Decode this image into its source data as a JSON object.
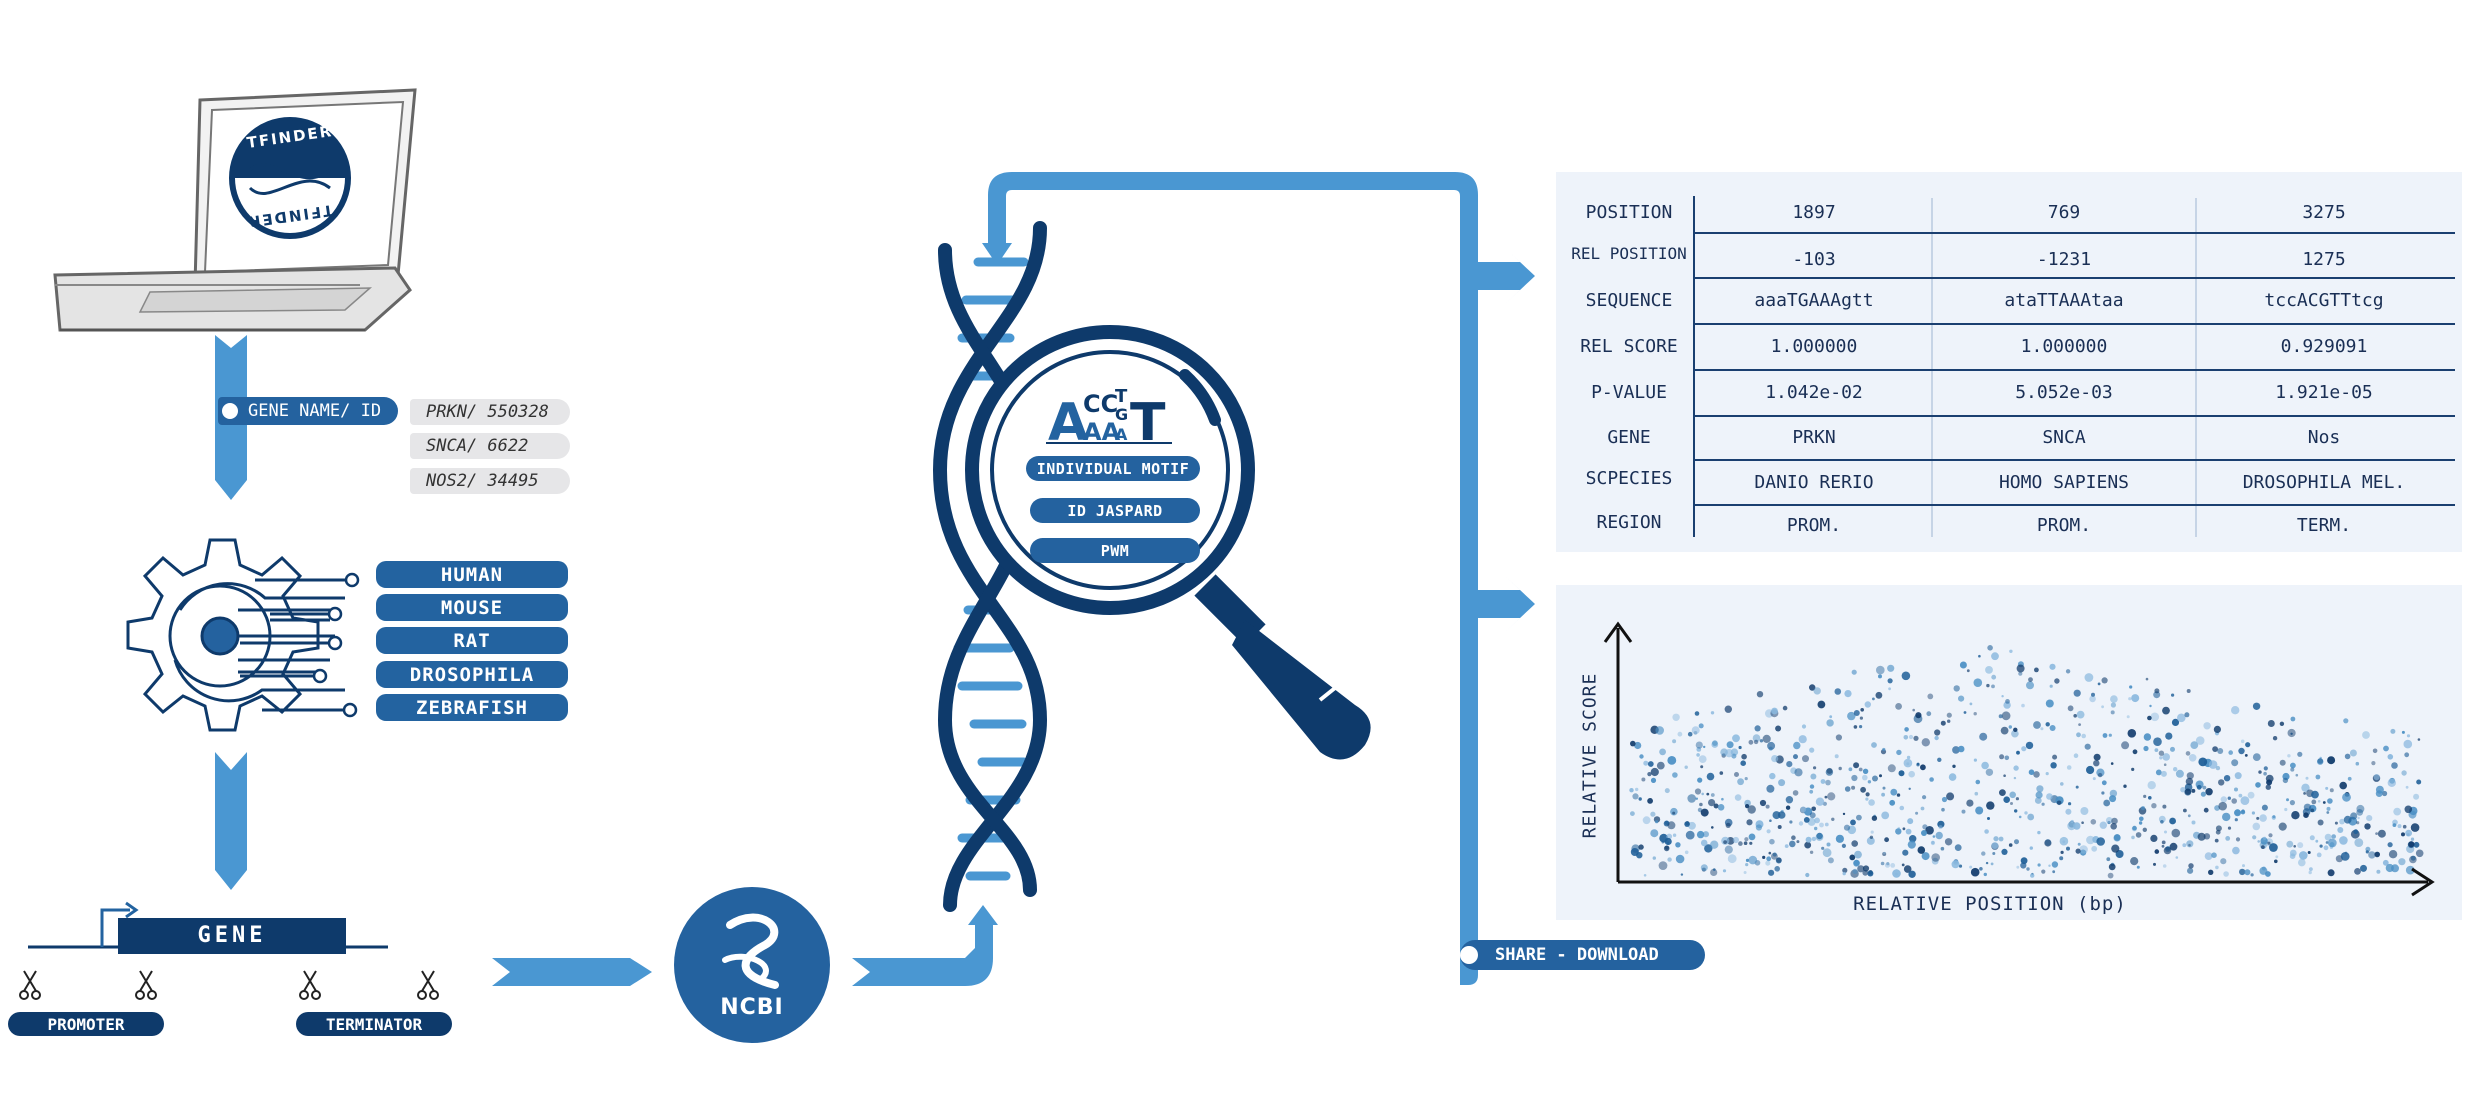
{
  "laptop": {
    "logo_text_top": "TFINDER",
    "logo_text_bottom": "TFINDER"
  },
  "input": {
    "label": "GENE NAME/ ID",
    "gene_ids": [
      "PRKN/ 550328",
      "SNCA/ 6622",
      "NOS2/ 34495"
    ]
  },
  "species": [
    "HUMAN",
    "MOUSE",
    "RAT",
    "DROSOPHILA",
    "ZEBRAFISH"
  ],
  "gene_diagram": {
    "gene_label": "GENE",
    "promoter_label": "PROMOTER",
    "terminator_label": "TERMINATOR"
  },
  "ncbi": {
    "label": "NCBI"
  },
  "finder": {
    "handle_label": "FINDER",
    "logo_letters": "ACCTGAAAT",
    "motif_options": [
      "INDIVIDUAL MOTIF",
      "ID JASPARD",
      "PWM"
    ]
  },
  "results_table": {
    "row_labels": [
      "POSITION",
      "REL POSITION",
      "SEQUENCE",
      "REL SCORE",
      "P-VALUE",
      "GENE",
      "SCPECIES",
      "REGION"
    ],
    "columns": [
      [
        "1897",
        "-103",
        "aaaTGAAAgtt",
        "1.000000",
        "1.042e-02",
        "PRKN",
        "DANIO RERIO",
        "PROM."
      ],
      [
        "769",
        "-1231",
        "ataTTAAAtaa",
        "1.000000",
        "5.052e-03",
        "SNCA",
        "HOMO SAPIENS",
        "PROM."
      ],
      [
        "3275",
        "1275",
        "tccACGTTtcg",
        "0.929091",
        "1.921e-05",
        "Nos",
        "DROSOPHILA MEL.",
        "TERM."
      ]
    ]
  },
  "chart_data": {
    "type": "scatter",
    "xlabel": "RELATIVE POSITION (bp)",
    "ylabel": "RELATIVE SCORE",
    "title": "",
    "grid": false,
    "colors": [
      "#0f3a6b",
      "#1f5f98",
      "#4a8fc4",
      "#8ab8de"
    ]
  },
  "share": {
    "label": "SHARE - DOWNLOAD"
  },
  "colors": {
    "dark_navy": "#0e3a6b",
    "mid_blue": "#2363a0",
    "light_blue": "#4a97d2",
    "panel_bg": "#eef3fa"
  }
}
